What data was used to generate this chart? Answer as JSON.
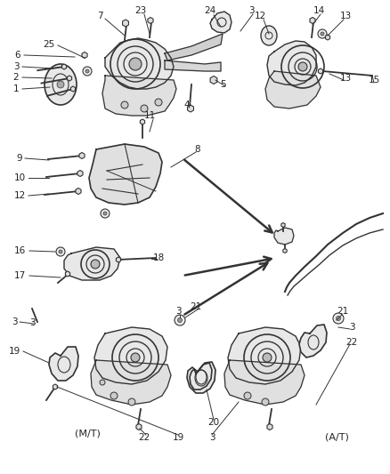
{
  "bg_color": "#ffffff",
  "line_color": "#333333",
  "text_color": "#222222",
  "fig_w": 4.38,
  "fig_h": 5.33,
  "dpi": 100
}
